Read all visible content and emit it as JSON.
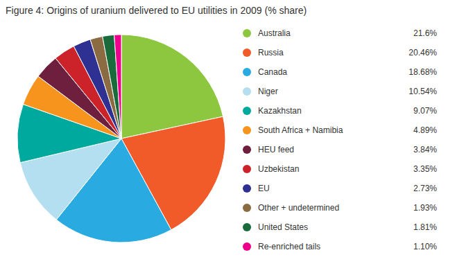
{
  "chart_data": {
    "type": "pie",
    "title": "Figure 4: Origins of uranium delivered to EU utilities in 2009 (% share)",
    "categories": [
      "Australia",
      "Russia",
      "Canada",
      "Niger",
      "Kazakhstan",
      "South Africa + Namibia",
      "HEU feed",
      "Uzbekistan",
      "EU",
      "Other + undetermined",
      "United States",
      "Re-enriched tails"
    ],
    "values": [
      21.6,
      20.46,
      18.68,
      10.54,
      9.07,
      4.89,
      3.84,
      3.35,
      2.73,
      1.93,
      1.81,
      1.1
    ],
    "value_labels": [
      "21.6%",
      "20.46%",
      "18.68%",
      "10.54%",
      "9.07%",
      "4.89%",
      "3.84%",
      "3.35%",
      "2.73%",
      "1.93%",
      "1.81%",
      "1.10%"
    ],
    "colors": [
      "#8dc63f",
      "#f15a29",
      "#29abe2",
      "#b3dff0",
      "#00a99d",
      "#f7941d",
      "#6d1f3d",
      "#cc2229",
      "#2e3192",
      "#8b6c42",
      "#1a6b3c",
      "#ec008c"
    ],
    "legend": "right"
  }
}
